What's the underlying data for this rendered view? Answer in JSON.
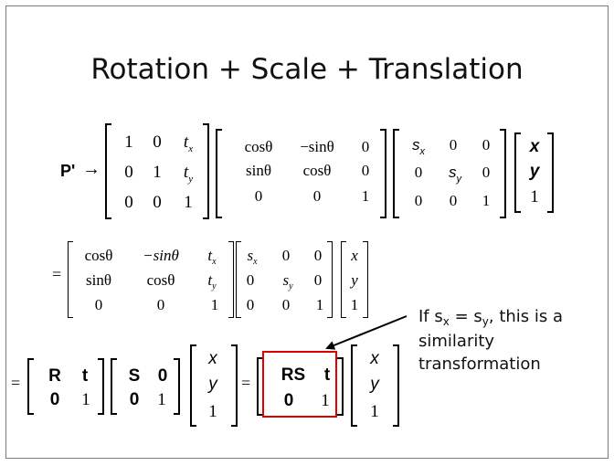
{
  "slide": {
    "title": "Rotation + Scale + Translation",
    "callout": {
      "prefix": "If s",
      "sub_x": "x",
      "eq": " = s",
      "sub_y": "y",
      "line1_rest": ", this is a",
      "line2": "similarity",
      "line3": "transformation"
    }
  },
  "eq1": {
    "lhs": "P'",
    "arrow": "→",
    "translation": [
      [
        "1",
        "0",
        "t",
        "x"
      ],
      [
        "0",
        "1",
        "t",
        "y"
      ],
      [
        "0",
        "0",
        "1",
        ""
      ]
    ],
    "rotation": [
      [
        "cosθ",
        "−sinθ",
        "0"
      ],
      [
        "sinθ",
        "cosθ",
        "0"
      ],
      [
        "0",
        "0",
        "1"
      ]
    ],
    "scale": [
      [
        "s",
        "x",
        "0",
        "0"
      ],
      [
        "0",
        "s",
        "y",
        "0"
      ],
      [
        "0",
        "0",
        "1",
        ""
      ]
    ],
    "vector": [
      "x",
      "y",
      "1"
    ]
  },
  "eq2": {
    "equals": "=",
    "combined": [
      [
        "cosθ",
        "−sinθ",
        "t",
        "x"
      ],
      [
        "sinθ",
        "cosθ",
        "t",
        "y"
      ],
      [
        "0",
        "0",
        "1",
        ""
      ]
    ],
    "scale": [
      [
        "s",
        "x",
        "0",
        "0"
      ],
      [
        "0",
        "s",
        "y",
        "0"
      ],
      [
        "0",
        "0",
        "1",
        ""
      ]
    ],
    "vector": [
      "x",
      "y",
      "1"
    ]
  },
  "eq3": {
    "equals1": "=",
    "equals2": "=",
    "rt": [
      [
        "R",
        "t"
      ],
      [
        "0",
        "1"
      ]
    ],
    "s0": [
      [
        "S",
        "0"
      ],
      [
        "0",
        "1"
      ]
    ],
    "vector1": [
      "x",
      "y",
      "1"
    ],
    "rst": [
      [
        "RS",
        "t"
      ],
      [
        "0",
        "1"
      ]
    ],
    "vector2": [
      "x",
      "y",
      "1"
    ]
  },
  "colors": {
    "highlight": "#e00000",
    "border": "#7a7a7a"
  }
}
